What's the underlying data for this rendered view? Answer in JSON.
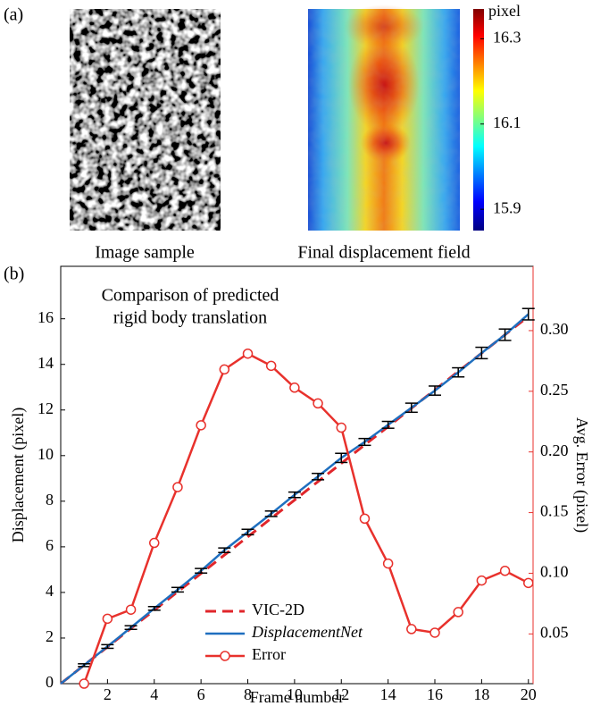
{
  "panel_a": {
    "label": "(a)",
    "image_caption": "Image sample",
    "field_caption": "Final displacement field",
    "colorbar": {
      "label": "pixel",
      "lim": [
        15.85,
        16.37
      ],
      "ticks": [
        15.9,
        16.1,
        16.3
      ]
    }
  },
  "chart_data": {
    "type": "line",
    "panel_label": "(b)",
    "annotation": [
      "Comparison of predicted",
      "rigid body translation"
    ],
    "x_label": "Frame number",
    "y_label": "Displacement (pixel)",
    "y2_label": "Avg. Error (pixel)",
    "x": [
      0,
      1,
      2,
      3,
      4,
      5,
      6,
      7,
      8,
      9,
      10,
      11,
      12,
      13,
      14,
      15,
      16,
      17,
      18,
      19,
      20
    ],
    "xlim": [
      0,
      20.2
    ],
    "xticks": [
      2,
      4,
      6,
      8,
      10,
      12,
      14,
      16,
      18,
      20
    ],
    "ylim": [
      0,
      18.3
    ],
    "yticks": [
      0,
      2,
      4,
      6,
      8,
      10,
      12,
      14,
      16
    ],
    "y2lim": [
      0.009,
      0.353
    ],
    "y2ticks": [
      {
        "value": 0.05,
        "label": "0.05"
      },
      {
        "value": 0.1,
        "label": "0.10"
      },
      {
        "value": 0.15,
        "label": "0.15"
      },
      {
        "value": 0.2,
        "label": "0.20"
      },
      {
        "value": 0.25,
        "label": "0.25"
      },
      {
        "value": 0.3,
        "label": "0.30"
      }
    ],
    "y2_color": "#e8312c",
    "legend": "lower center",
    "error_color": "#000000",
    "series": [
      {
        "name": "VIC-2D",
        "color": "#e0262b",
        "style": "dashed",
        "values": [
          0,
          0.81,
          1.61,
          2.42,
          3.22,
          4.03,
          4.83,
          5.64,
          6.44,
          7.25,
          8.05,
          8.86,
          9.66,
          10.47,
          11.27,
          12.08,
          12.88,
          13.69,
          14.49,
          15.3,
          16.1
        ]
      },
      {
        "name": "DisplacementNet",
        "color": "#1f6fbf",
        "style": "solid",
        "values": [
          0,
          0.81,
          1.63,
          2.46,
          3.3,
          4.12,
          4.95,
          5.85,
          6.65,
          7.45,
          8.28,
          9.08,
          9.9,
          10.6,
          11.35,
          12.1,
          12.85,
          13.65,
          14.5,
          15.3,
          16.2
        ],
        "errors": [
          null,
          0.06,
          0.08,
          0.08,
          0.08,
          0.1,
          0.1,
          0.1,
          0.12,
          0.12,
          0.12,
          0.14,
          0.2,
          0.15,
          0.15,
          0.2,
          0.2,
          0.2,
          0.25,
          0.25,
          0.25
        ]
      },
      {
        "name": "Error",
        "color": "#e8312c",
        "style": "solid",
        "marker": "circle",
        "axis": "y2",
        "values": [
          null,
          0.009,
          0.0625,
          0.07,
          0.125,
          0.171,
          0.222,
          0.268,
          0.281,
          0.271,
          0.253,
          0.24,
          0.22,
          0.145,
          0.108,
          0.054,
          0.051,
          0.068,
          0.094,
          0.102,
          0.092
        ]
      }
    ]
  }
}
